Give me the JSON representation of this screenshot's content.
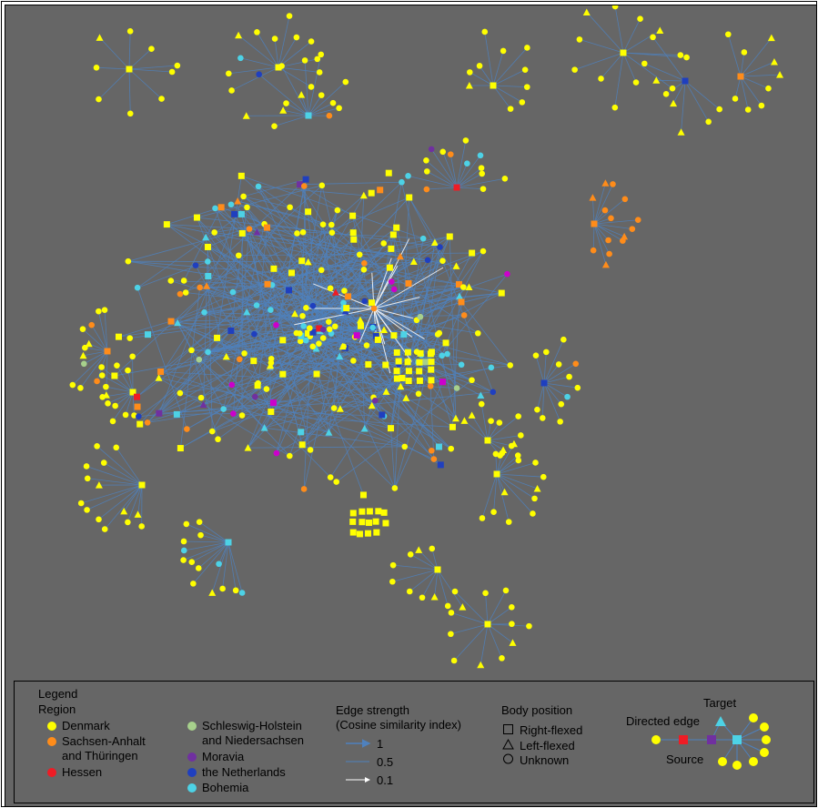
{
  "colors": {
    "denmark": "#ffff00",
    "sachsen": "#ff8c1a",
    "hessen": "#ee1c25",
    "schleswig": "#a7d08c",
    "moravia": "#7030a0",
    "netherlands": "#1f3fbf",
    "bohemia": "#4dd2e6",
    "magenta": "#cc00cc",
    "edge": "#4f81bd",
    "background": "#666666"
  },
  "legend": {
    "title": "Legend",
    "region_title": "Region",
    "regions": [
      {
        "label": "Denmark",
        "color": "#ffff00"
      },
      {
        "label": "Sachsen-Anhalt",
        "label2": "and Thüringen",
        "color": "#ff8c1a"
      },
      {
        "label": "Hessen",
        "color": "#ee1c25"
      },
      {
        "label": "Schleswig-Holstein",
        "label2": "and Niedersachsen",
        "color": "#a7d08c"
      },
      {
        "label": "Moravia",
        "color": "#7030a0"
      },
      {
        "label": "the Netherlands",
        "color": "#1f3fbf"
      },
      {
        "label": "Bohemia",
        "color": "#4dd2e6"
      }
    ],
    "edge_title": "Edge strength",
    "edge_subtitle": "(Cosine similarity index)",
    "edge_values": [
      "1",
      "0.5",
      "0.1"
    ],
    "body_title": "Body position",
    "body_items": [
      {
        "label": "Right-flexed",
        "icon": "square-icon"
      },
      {
        "label": "Left-flexed",
        "icon": "triangle-icon"
      },
      {
        "label": "Unknown",
        "icon": "circle-icon"
      }
    ],
    "example": {
      "target": "Target",
      "directed_edge": "Directed edge",
      "source": "Source"
    }
  }
}
